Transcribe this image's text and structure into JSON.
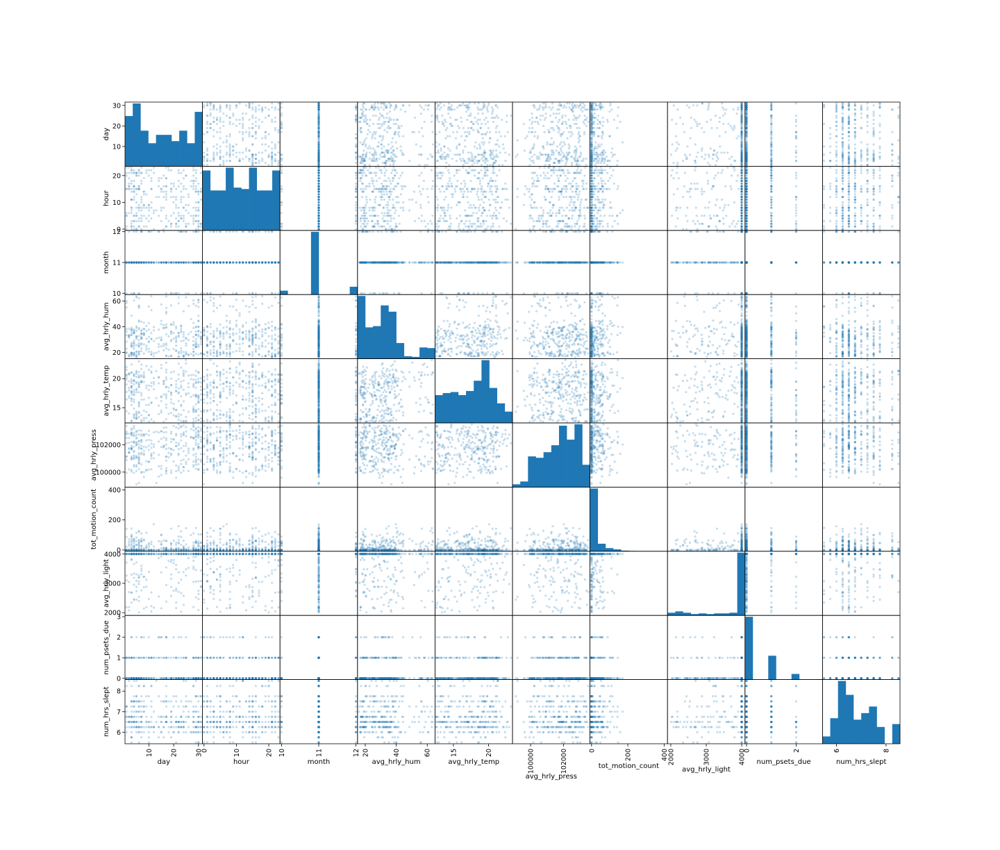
{
  "chart_data": {
    "type": "scatter",
    "kind": "scatter-matrix",
    "diagonal": "histogram",
    "color": "#1f77b4",
    "grid": false,
    "variables": [
      {
        "name": "day",
        "range": [
          1,
          31
        ],
        "ticks": [
          10,
          20,
          30
        ],
        "ytick_labels": [
          "10",
          "20",
          "30"
        ],
        "xtick_labels": [
          "10",
          "20",
          "30"
        ],
        "hist": [
          24,
          30,
          17,
          11,
          15,
          15,
          12,
          17,
          11,
          26
        ]
      },
      {
        "name": "hour",
        "range": [
          0,
          23
        ],
        "ticks": [
          0,
          10,
          20
        ],
        "ytick_labels": [
          "0",
          "10",
          "20"
        ],
        "xtick_labels": [
          "0",
          "10",
          "20"
        ],
        "hist": [
          21,
          14,
          14,
          22,
          15,
          14.5,
          22,
          14,
          14,
          21
        ]
      },
      {
        "name": "month",
        "range": [
          10,
          12
        ],
        "ticks": [
          10,
          11,
          12
        ],
        "ytick_labels": [
          "10",
          "11",
          "12"
        ],
        "xtick_labels": [
          "10",
          "11",
          "12"
        ],
        "hist": [
          1,
          0,
          0,
          0,
          16,
          0,
          0,
          0,
          0,
          2
        ]
      },
      {
        "name": "avg_hrly_hum",
        "range": [
          16,
          64
        ],
        "ticks": [
          20,
          40,
          60
        ],
        "ytick_labels": [
          "20",
          "40",
          "60"
        ],
        "xtick_labels": [
          "20",
          "40",
          "60"
        ],
        "hist": [
          100,
          50,
          52,
          85,
          75,
          25,
          4,
          3,
          18,
          17
        ]
      },
      {
        "name": "avg_hrly_temp",
        "range": [
          12.6,
          23.2
        ],
        "ticks": [
          15,
          20
        ],
        "ytick_labels": [
          "15",
          "20"
        ],
        "xtick_labels": [
          "15",
          "20"
        ],
        "hist": [
          27,
          29,
          30,
          27,
          31,
          41,
          61,
          34,
          19,
          11
        ]
      },
      {
        "name": "avg_hrly_press",
        "range": [
          99000,
          103500
        ],
        "ticks": [
          100000,
          102000
        ],
        "ytick_labels": [
          "100000",
          "102000"
        ],
        "xtick_labels": [
          "100000",
          "102000"
        ],
        "hist": [
          2,
          4,
          22,
          21,
          25,
          30,
          44,
          34,
          45,
          16
        ]
      },
      {
        "name": "tot_motion_count",
        "range": [
          0,
          410
        ],
        "ticks": [
          0,
          200,
          400
        ],
        "ytick_labels": [
          "0",
          "200",
          "400"
        ],
        "xtick_labels": [
          "0",
          "200",
          "400"
        ],
        "hist": [
          100,
          12,
          5,
          3,
          1,
          0.5,
          0,
          0,
          0,
          0
        ]
      },
      {
        "name": "avg_hrly_light",
        "range": [
          1950,
          4050
        ],
        "ticks": [
          2000,
          3000,
          4000
        ],
        "ytick_labels": [
          "2000",
          "3000",
          "4000"
        ],
        "xtick_labels": [
          "2000",
          "3000",
          "4000"
        ],
        "hist": [
          4,
          6,
          4,
          2,
          3,
          2,
          3,
          3,
          4,
          93
        ]
      },
      {
        "name": "num_psets_due",
        "range": [
          0,
          3
        ],
        "ticks": [
          0,
          1,
          2,
          3
        ],
        "ytick_labels": [
          "0",
          "1",
          "2",
          "3"
        ],
        "xtick_labels": [
          "0",
          "2"
        ],
        "hist": [
          100,
          0,
          0,
          38,
          0,
          0,
          9,
          0,
          0,
          0.5
        ]
      },
      {
        "name": "num_hrs_slept",
        "range": [
          5.5,
          8.5
        ],
        "ticks": [
          6,
          7,
          8
        ],
        "ytick_labels": [
          "6",
          "7",
          "8"
        ],
        "xtick_labels": [
          "6",
          "8"
        ],
        "hist": [
          10,
          35,
          86,
          67,
          33,
          42,
          51,
          23,
          0,
          27
        ]
      }
    ]
  }
}
